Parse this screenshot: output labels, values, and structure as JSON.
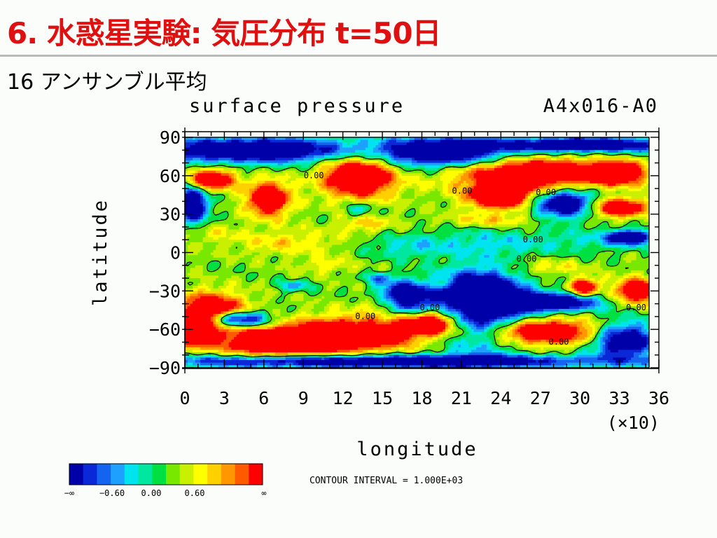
{
  "slide": {
    "title": "6. 水惑星実験: 気圧分布 t=50日",
    "subtitle": "16 アンサンブル平均"
  },
  "chart_data": {
    "type": "heatmap",
    "title": "surface pressure",
    "run_label": "A4x016-A0",
    "xlabel": "longitude",
    "ylabel": "latitude",
    "x_scale_label": "(×10)",
    "xlim": [
      0,
      36
    ],
    "ylim": [
      -90,
      90
    ],
    "x_ticks": [
      "0",
      "3",
      "6",
      "9",
      "12",
      "15",
      "18",
      "21",
      "24",
      "27",
      "30",
      "33",
      "36"
    ],
    "y_ticks": [
      "90",
      "60",
      "30",
      "0",
      "−30",
      "−60",
      "−90"
    ],
    "y_tick_values": [
      90,
      60,
      30,
      0,
      -30,
      -60,
      -90
    ],
    "contour_interval_text": "CONTOUR INTERVAL = 1.000E+03",
    "contour_labels": [
      {
        "text": "0.00",
        "lon": 10,
        "lat": 58
      },
      {
        "text": "0.00",
        "lon": 21.5,
        "lat": 46
      },
      {
        "text": "0.00",
        "lon": 28,
        "lat": 45
      },
      {
        "text": "0.00",
        "lon": 27,
        "lat": 8
      },
      {
        "text": "0.00",
        "lon": 26.5,
        "lat": -7
      },
      {
        "text": "0.00",
        "lon": 14,
        "lat": -52
      },
      {
        "text": "0.00",
        "lon": 19,
        "lat": -45
      },
      {
        "text": "0.00",
        "lon": 29,
        "lat": -72
      },
      {
        "text": "0.00",
        "lon": 35,
        "lat": -45
      }
    ],
    "colorbar": {
      "colors": [
        "#0000a8",
        "#0a28d8",
        "#1464f0",
        "#1ea0ff",
        "#00e4f0",
        "#00e8a0",
        "#00e040",
        "#78e800",
        "#c8f000",
        "#ffff00",
        "#ffd000",
        "#ff9800",
        "#ff5a00",
        "#ff0000"
      ],
      "labels": [
        "−∞",
        "−0.60",
        "0.00",
        "0.60",
        "∞"
      ]
    },
    "blobs": [
      {
        "v": 5,
        "lon": 13,
        "lat": -64,
        "rlon": 5,
        "rlat": 13
      },
      {
        "v": 5,
        "lon": 7,
        "lat": -70,
        "rlon": 4.5,
        "rlat": 11
      },
      {
        "v": 5,
        "lon": 2,
        "lat": -45,
        "rlon": 2.5,
        "rlat": 13
      },
      {
        "v": 5,
        "lon": 0.6,
        "lat": -62,
        "rlon": 1.5,
        "rlat": 10
      },
      {
        "v": 5,
        "lon": 13.5,
        "lat": 60,
        "rlon": 2.8,
        "rlat": 17
      },
      {
        "v": 5,
        "lon": 6.5,
        "lat": 42,
        "rlon": 1.6,
        "rlat": 13
      },
      {
        "v": 5,
        "lon": 2,
        "lat": 57,
        "rlon": 1.8,
        "rlat": 8
      },
      {
        "v": 5,
        "lon": 27,
        "lat": 62,
        "rlon": 6,
        "rlat": 12
      },
      {
        "v": 5,
        "lon": 24.5,
        "lat": 44,
        "rlon": 2.6,
        "rlat": 10
      },
      {
        "v": 5,
        "lon": 33.5,
        "lat": 62,
        "rlon": 2,
        "rlat": 8
      },
      {
        "v": 5,
        "lon": 19.2,
        "lat": -55,
        "rlon": 2.2,
        "rlat": 9
      },
      {
        "v": 5,
        "lon": 27.5,
        "lat": -62,
        "rlon": 5,
        "rlat": 10
      },
      {
        "v": 5,
        "lon": 35,
        "lat": -30,
        "rlon": 1.5,
        "rlat": 9
      },
      {
        "v": 5,
        "lon": 33.5,
        "lat": 35,
        "rlon": 2.2,
        "rlat": 7
      },
      {
        "v": 5,
        "lon": 31,
        "lat": -27,
        "rlon": 1,
        "rlat": 6
      },
      {
        "v": -5,
        "lon": 5,
        "lat": 80,
        "rlon": 9,
        "rlat": 10
      },
      {
        "v": -5,
        "lon": 20,
        "lat": 78,
        "rlon": 5,
        "rlat": 12
      },
      {
        "v": -5,
        "lon": 31,
        "lat": 84,
        "rlon": 7,
        "rlat": 6
      },
      {
        "v": -5,
        "lon": 29.5,
        "lat": 38,
        "rlon": 2.5,
        "rlat": 11
      },
      {
        "v": -5,
        "lon": 23,
        "lat": -45,
        "rlon": 3.5,
        "rlat": 30
      },
      {
        "v": -5,
        "lon": 17,
        "lat": -35,
        "rlon": 2,
        "rlat": 12
      },
      {
        "v": -5,
        "lon": 28.5,
        "lat": -39,
        "rlon": 3.5,
        "rlat": 7
      },
      {
        "v": -5,
        "lon": 34,
        "lat": -68,
        "rlon": 2.5,
        "rlat": 14
      },
      {
        "v": -5,
        "lon": 4,
        "lat": -52,
        "rlon": 2.5,
        "rlat": 6
      },
      {
        "v": -5,
        "lon": 15,
        "lat": -85,
        "rlon": 18,
        "rlat": 5
      },
      {
        "v": -5,
        "lon": 0.6,
        "lat": 38,
        "rlon": 1.2,
        "rlat": 15
      },
      {
        "v": -5,
        "lon": 34.5,
        "lat": 12,
        "rlon": 1.5,
        "rlat": 5
      },
      {
        "v": -1.2,
        "lon": 24,
        "lat": 8,
        "rlon": 7,
        "rlat": 11
      },
      {
        "v": -1,
        "lon": 17,
        "lat": 4,
        "rlon": 3,
        "rlat": 9
      },
      {
        "v": -1,
        "lon": 33,
        "lat": 10,
        "rlon": 4,
        "rlat": 8
      },
      {
        "v": -3,
        "lon": 22.5,
        "lat": -28,
        "rlon": 3,
        "rlat": 10
      },
      {
        "v": -2,
        "lon": 13.5,
        "lat": 34,
        "rlon": 1,
        "rlat": 5
      },
      {
        "v": -2,
        "lon": 8.5,
        "lat": -26,
        "rlon": 1.2,
        "rlat": 4
      },
      {
        "v": -2,
        "lon": 15,
        "lat": -20,
        "rlon": 1,
        "rlat": 4
      },
      {
        "v": 1.2,
        "lon": 8,
        "lat": 8,
        "rlon": 4,
        "rlat": 10
      },
      {
        "v": 1.5,
        "lon": 14,
        "lat": 22,
        "rlon": 2,
        "rlat": 6
      },
      {
        "v": 1.3,
        "lon": 24,
        "lat": 25,
        "rlon": 4,
        "rlat": 5
      },
      {
        "v": 1.2,
        "lon": 28,
        "lat": -12,
        "rlon": 3,
        "rlat": 6
      },
      {
        "v": 1,
        "lon": 11,
        "lat": -10,
        "rlon": 2,
        "rlat": 6
      },
      {
        "v": 0.8,
        "lon": 2,
        "lat": 15,
        "rlon": 2,
        "rlat": 8
      },
      {
        "v": 1.8,
        "lon": 15.5,
        "lat": -40,
        "rlon": 1.6,
        "rlat": 7
      },
      {
        "v": 1.5,
        "lon": 20,
        "lat": -25,
        "rlon": 1.5,
        "rlat": 5
      }
    ]
  }
}
